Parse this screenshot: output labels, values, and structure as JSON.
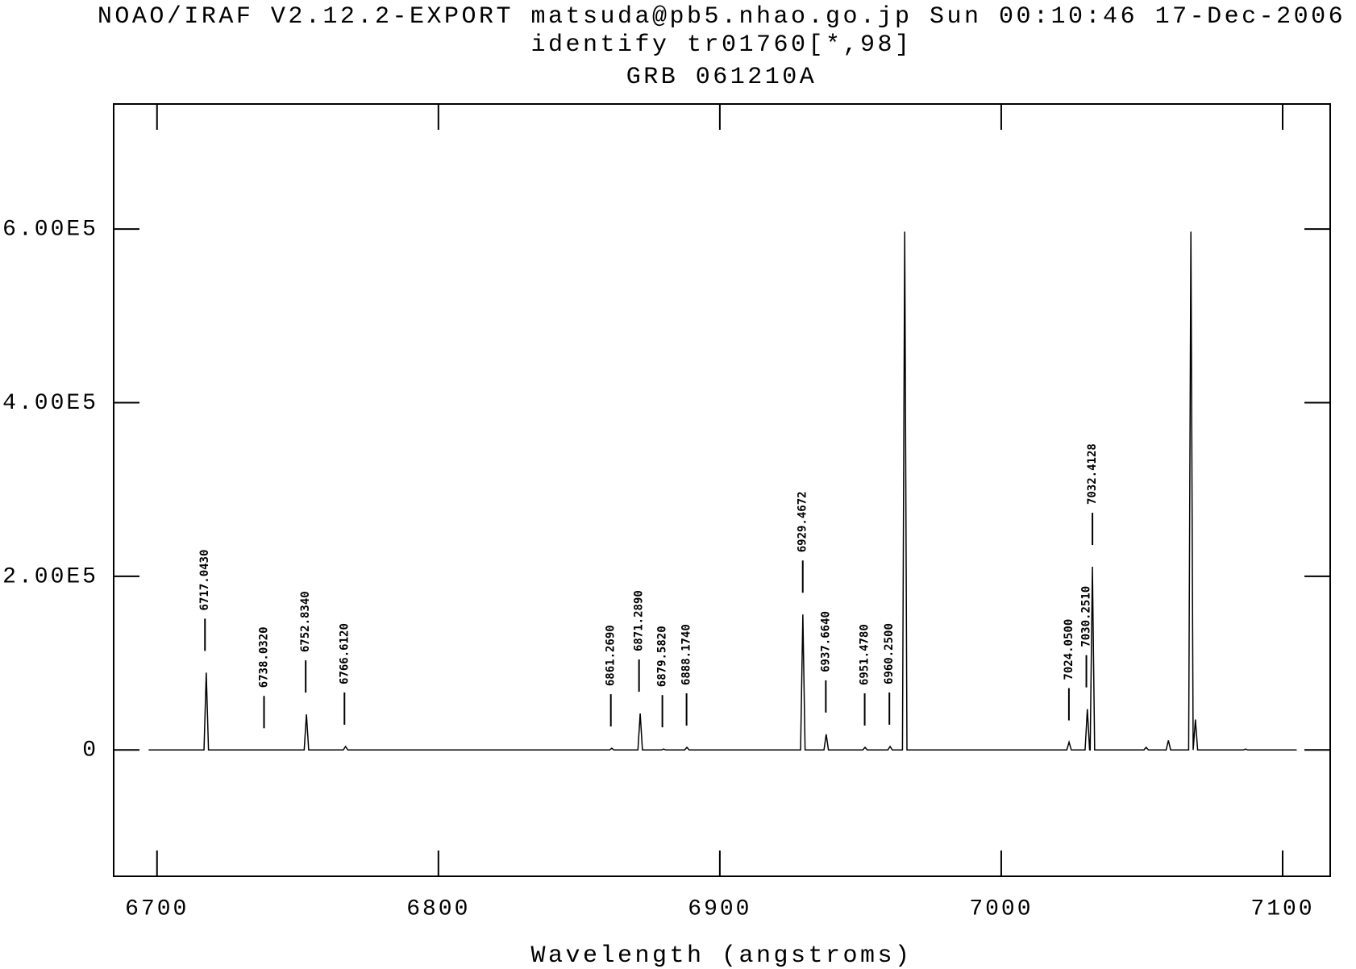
{
  "chart_data": {
    "type": "line",
    "title": "NOAO/IRAF V2.12.2-EXPORT matsuda@pb5.nhao.go.jp Sun 00:10:46 17-Dec-2006",
    "subtitle": "identify tr01760[*,98]",
    "object": "GRB 061210A",
    "xlabel": "Wavelength (angstroms)",
    "color": "#000000",
    "x": [
      6697,
      6716.7,
      6717.5,
      6718.3,
      6752.3,
      6753.1,
      6753.9,
      6766.2,
      6767.0,
      6767.8,
      6860.8,
      6861.6,
      6862.4,
      6870.9,
      6871.7,
      6872.5,
      6879.2,
      6880.0,
      6880.8,
      6887.5,
      6888.3,
      6889.1,
      6928.7,
      6929.5,
      6930.3,
      6937.0,
      6937.8,
      6938.6,
      6950.8,
      6951.6,
      6952.4,
      6959.7,
      6960.5,
      6961.3,
      6964.9,
      6965.7,
      6966.5,
      7023.3,
      7024.1,
      7024.9,
      7029.8,
      7030.6,
      7031.4,
      7031.6,
      7032.4,
      7033.2,
      7050.7,
      7051.5,
      7052.3,
      7058.6,
      7059.4,
      7060.2,
      7066.6,
      7067.4,
      7068.2,
      7069.0,
      7069.8,
      7086.0,
      7086.8,
      7087.6,
      7105
    ],
    "values": [
      0,
      0,
      89000,
      0,
      0,
      41000,
      0,
      0,
      4000,
      0,
      0,
      2000,
      0,
      0,
      42000,
      0,
      0,
      1000,
      0,
      0,
      3000,
      0,
      0,
      156000,
      0,
      0,
      18000,
      0,
      0,
      3000,
      0,
      0,
      4000,
      0,
      0,
      597000,
      0,
      0,
      9000,
      0,
      0,
      47000,
      0,
      0,
      211000,
      0,
      0,
      3000,
      0,
      0,
      11000,
      0,
      0,
      597000,
      0,
      35000,
      0,
      0,
      1000,
      0,
      0
    ],
    "identifications": [
      {
        "value": 6717.043,
        "label": "6717.0430"
      },
      {
        "value": 6738.032,
        "label": "6738.0320"
      },
      {
        "value": 6752.834,
        "label": "6752.8340"
      },
      {
        "value": 6766.612,
        "label": "6766.6120"
      },
      {
        "value": 6861.269,
        "label": "6861.2690"
      },
      {
        "value": 6871.289,
        "label": "6871.2890"
      },
      {
        "value": 6879.582,
        "label": "6879.5820"
      },
      {
        "value": 6888.174,
        "label": "6888.1740"
      },
      {
        "value": 6929.4672,
        "label": "6929.4672"
      },
      {
        "value": 6937.664,
        "label": "6937.6640"
      },
      {
        "value": 6951.478,
        "label": "6951.4780"
      },
      {
        "value": 6960.25,
        "label": "6960.2500"
      },
      {
        "value": 7024.05,
        "label": "7024.0500"
      },
      {
        "value": 7030.251,
        "label": "7030.2510"
      },
      {
        "value": 7032.4128,
        "label": "7032.4128"
      }
    ],
    "xlim": [
      6684.6,
      7116.9
    ],
    "ylim": [
      -145500,
      744000
    ],
    "xticks": [
      6700,
      6800,
      6900,
      7000,
      7100
    ],
    "yticks": [
      0,
      {
        "value": 200000,
        "label": "2.00E5"
      },
      {
        "value": 400000,
        "label": "4.00E5"
      },
      {
        "value": 600000,
        "label": "6.00E5"
      }
    ]
  }
}
